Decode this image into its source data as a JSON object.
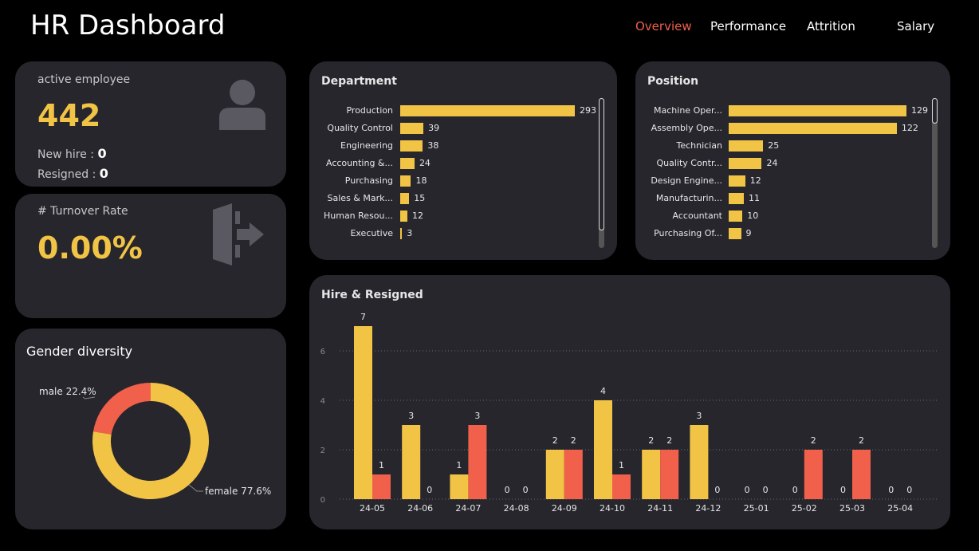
{
  "header": {
    "title": "HR Dashboard",
    "nav": [
      "Overview",
      "Performance",
      "Attrition",
      "Salary"
    ],
    "active_nav": "Overview"
  },
  "kpi_employees": {
    "label": "active employee",
    "value": "442",
    "new_hire_label": "New hire : ",
    "new_hire_value": "0",
    "resigned_label": "Resigned : ",
    "resigned_value": "0",
    "icon": "person-icon"
  },
  "kpi_turnover": {
    "label": "# Turnover Rate",
    "value": "0.00%",
    "icon": "exit-icon"
  },
  "gender": {
    "title": "Gender diversity",
    "male_label": "male 22.4%",
    "female_label": "female 77.6%"
  },
  "colors": {
    "hire": "#f2c445",
    "resigned": "#f0604a",
    "card": "#27262d",
    "background": "#000000"
  },
  "chart_data": [
    {
      "type": "bar",
      "title": "Department",
      "orientation": "horizontal",
      "categories": [
        "Production",
        "Quality Control",
        "Engineering",
        "Accounting &...",
        "Purchasing",
        "Sales & Mark...",
        "Human Resou...",
        "Executive"
      ],
      "values": [
        293,
        39,
        38,
        24,
        18,
        15,
        12,
        3
      ]
    },
    {
      "type": "bar",
      "title": "Position",
      "orientation": "horizontal",
      "categories": [
        "Machine Oper...",
        "Assembly Ope...",
        "Technician",
        "Quality Contr...",
        "Design Engine...",
        "Manufacturin...",
        "Accountant",
        "Purchasing Of..."
      ],
      "values": [
        129,
        122,
        25,
        24,
        12,
        11,
        10,
        9
      ]
    },
    {
      "type": "bar",
      "title": "Hire & Resigned",
      "categories": [
        "24-05",
        "24-06",
        "24-07",
        "24-08",
        "24-09",
        "24-10",
        "24-11",
        "24-12",
        "25-01",
        "25-02",
        "25-03",
        "25-04"
      ],
      "series": [
        {
          "values": [
            7,
            3,
            1,
            0,
            2,
            4,
            2,
            3,
            0,
            0,
            0,
            0
          ]
        },
        {
          "values": [
            1,
            0,
            3,
            0,
            2,
            1,
            2,
            0,
            0,
            2,
            2,
            0
          ]
        }
      ],
      "yticks": [
        "0",
        "2",
        "4",
        "6"
      ],
      "ylim": [
        0,
        7
      ],
      "grid": true
    },
    {
      "type": "pie",
      "title": "Gender diversity",
      "categories": [
        "male",
        "female"
      ],
      "values": [
        22.4,
        77.6
      ]
    }
  ]
}
